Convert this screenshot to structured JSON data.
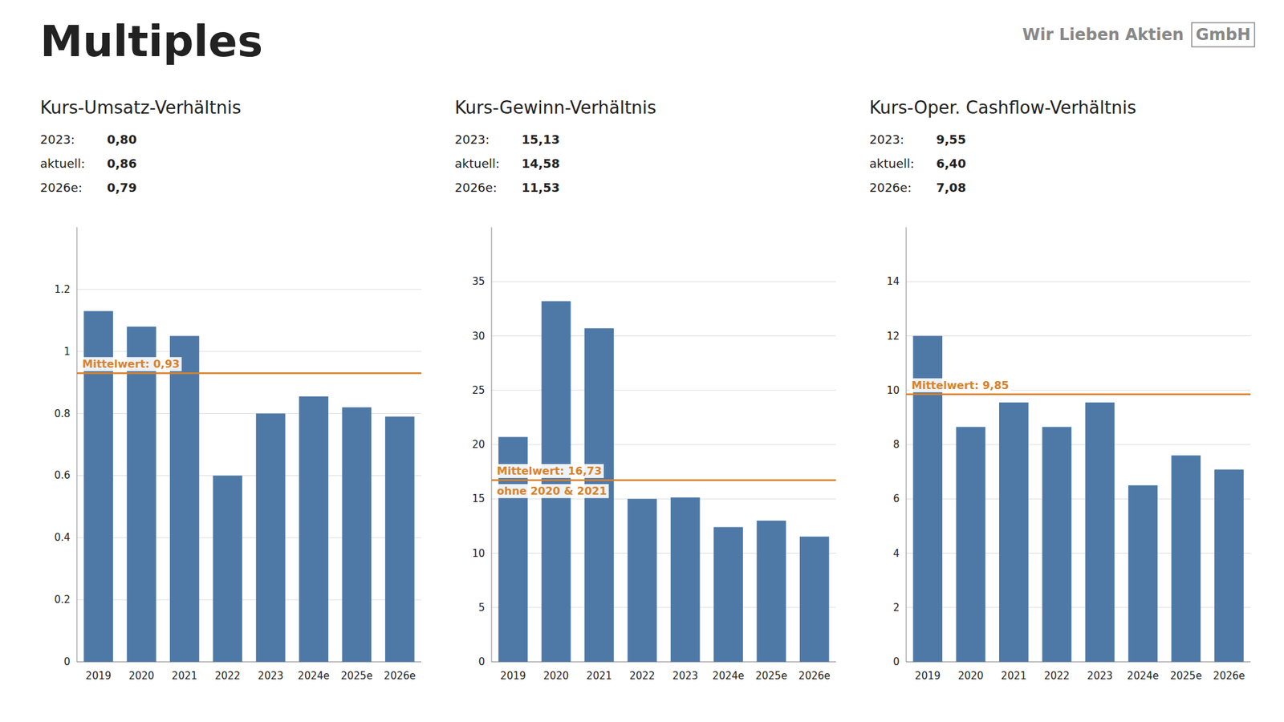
{
  "title": "Multiples",
  "annotations": [
    "Wir Lieben Aktien",
    "GmbH"
  ],
  "chart_data": [
    {
      "type": "bar",
      "title": "Kurs-Umsatz-Verhältnis",
      "annotations": [
        {
          "label": "2023:",
          "text": "0,80"
        },
        {
          "label": "aktuell:",
          "text": "0,86"
        },
        {
          "label": "2026e:",
          "text": "0,79"
        }
      ],
      "categories": [
        "2019",
        "2020",
        "2021",
        "2022",
        "2023",
        "2024e",
        "2025e",
        "2026e"
      ],
      "values": [
        1.13,
        1.08,
        1.05,
        0.6,
        0.8,
        0.855,
        0.82,
        0.79
      ],
      "mean": 0.93,
      "mean_labels": [
        "Mittelwert: 0,93"
      ],
      "ylim": [
        0,
        1.4
      ],
      "yticks": [
        0,
        0.2,
        0.4,
        0.6,
        0.8,
        1,
        1.2
      ],
      "grid": true
    },
    {
      "type": "bar",
      "title": "Kurs-Gewinn-Verhältnis",
      "annotations": [
        {
          "label": "2023:",
          "text": "15,13"
        },
        {
          "label": "aktuell:",
          "text": "14,58"
        },
        {
          "label": "2026e:",
          "text": "11,53"
        }
      ],
      "categories": [
        "2019",
        "2020",
        "2021",
        "2022",
        "2023",
        "2024e",
        "2025e",
        "2026e"
      ],
      "values": [
        20.7,
        33.2,
        30.7,
        15.0,
        15.13,
        12.4,
        13.0,
        11.53
      ],
      "mean": 16.73,
      "mean_labels": [
        "Mittelwert: 16,73",
        "ohne 2020 & 2021"
      ],
      "ylim": [
        0,
        40
      ],
      "yticks": [
        0,
        5,
        10,
        15,
        20,
        25,
        30,
        35
      ],
      "grid": true
    },
    {
      "type": "bar",
      "title": "Kurs-Oper. Cashflow-Verhältnis",
      "annotations": [
        {
          "label": "2023:",
          "text": "9,55"
        },
        {
          "label": "aktuell:",
          "text": "6,40"
        },
        {
          "label": "2026e:",
          "text": "7,08"
        }
      ],
      "categories": [
        "2019",
        "2020",
        "2021",
        "2022",
        "2023",
        "2024e",
        "2025e",
        "2026e"
      ],
      "values": [
        12.0,
        8.65,
        9.55,
        8.65,
        9.55,
        6.5,
        7.6,
        7.08
      ],
      "mean": 9.85,
      "mean_labels": [
        "Mittelwert: 9,85"
      ],
      "ylim": [
        0,
        16
      ],
      "yticks": [
        0,
        2,
        4,
        6,
        8,
        10,
        12,
        14
      ],
      "grid": true
    }
  ]
}
